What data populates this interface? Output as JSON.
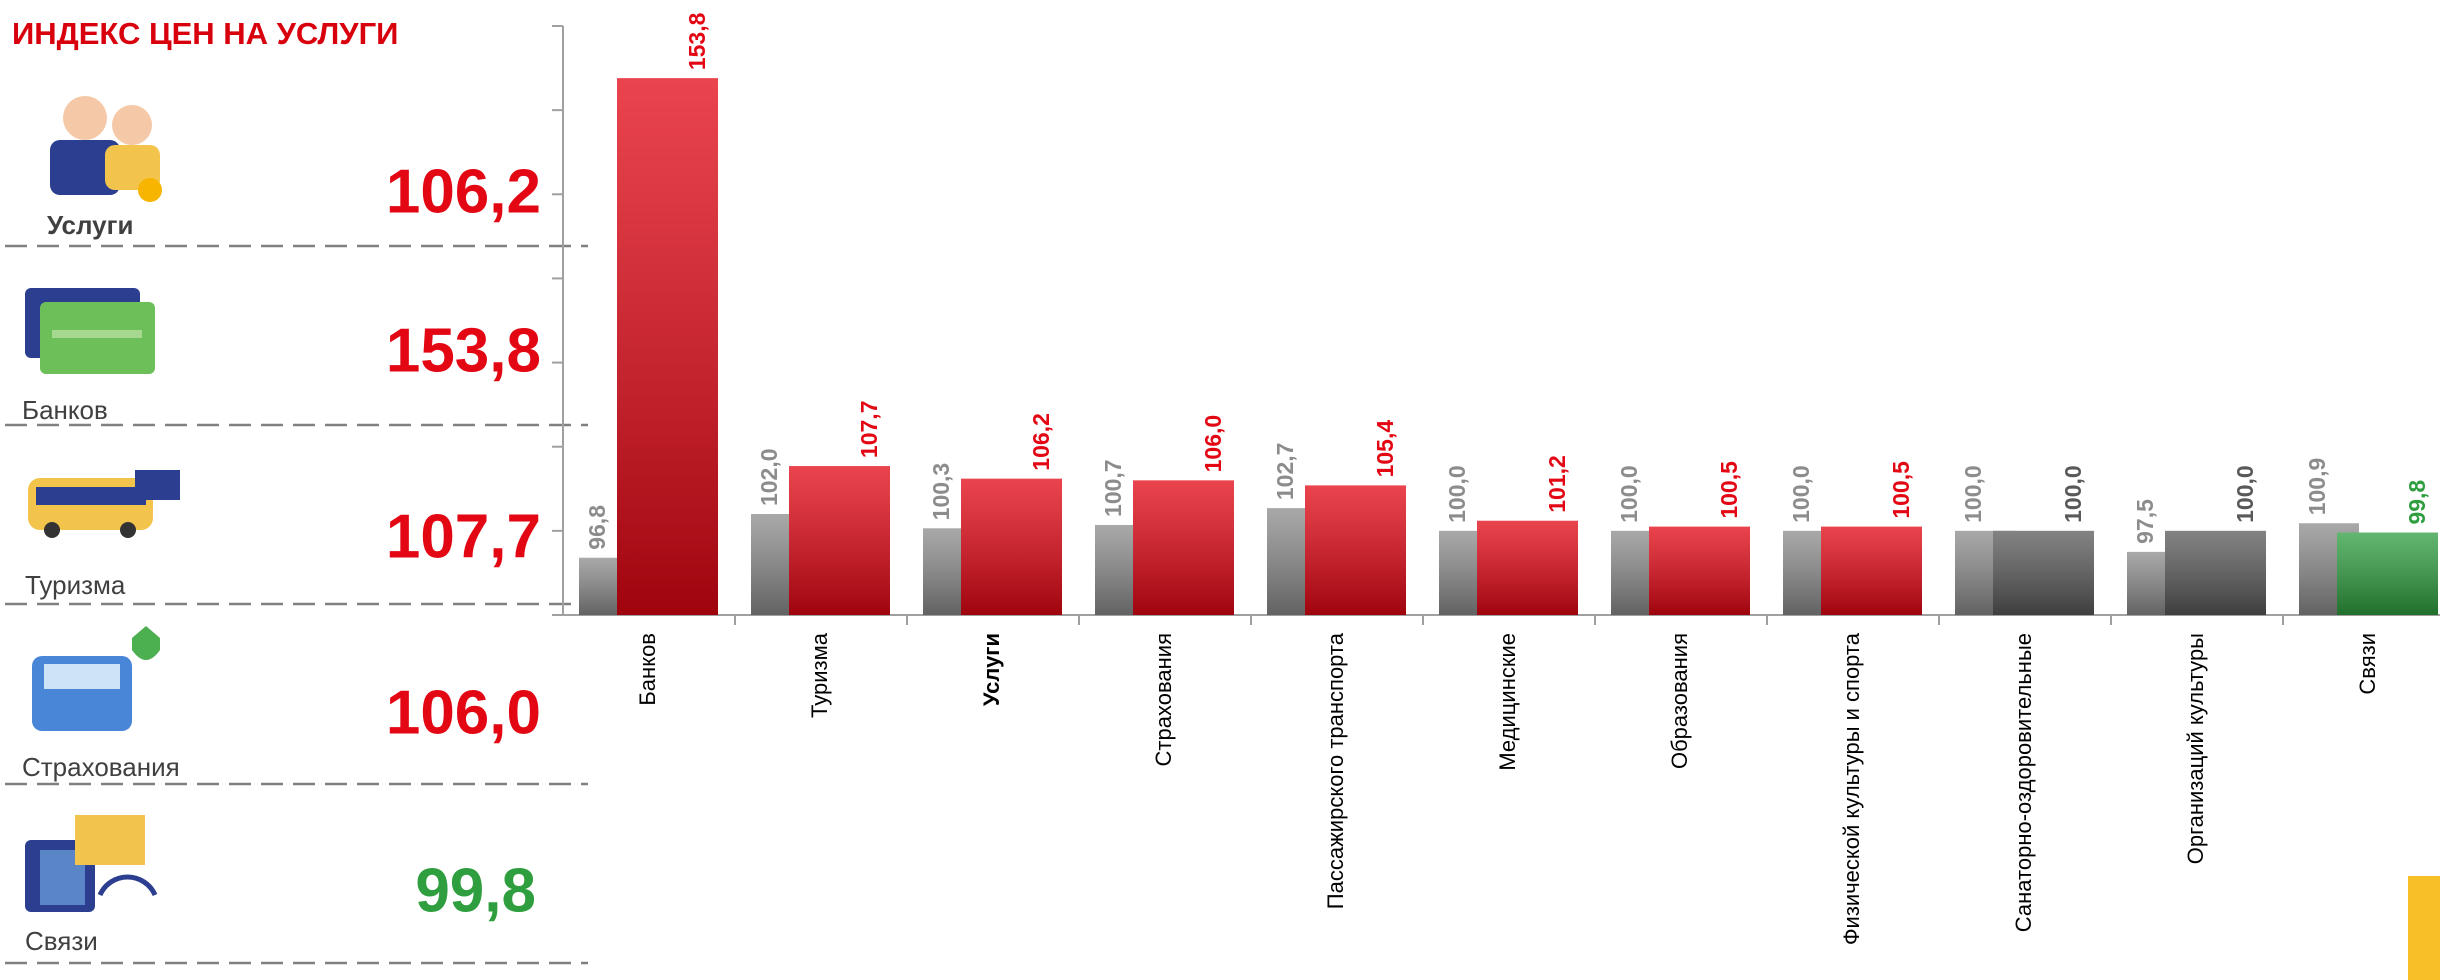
{
  "chart_data": {
    "type": "bar",
    "title": "ИНДЕКС ЦЕН НА УСЛУГИ",
    "categories": [
      "Банков",
      "Туризма",
      "Услуги",
      "Страхования",
      "Пассажирского транспорта",
      "Медицинские",
      "Образования",
      "Физической культуры и спорта",
      "Санаторно-оздоровительные",
      "Организаций культуры",
      "Связи"
    ],
    "series": [
      {
        "color": "#8c8c8c",
        "values": [
          96.8,
          102.0,
          100.3,
          100.7,
          102.7,
          100.0,
          100.0,
          100.0,
          100.0,
          97.5,
          100.9
        ],
        "value_labels": [
          "96,8",
          "102,0",
          "100,3",
          "100,7",
          "102,7",
          "100,0",
          "100,0",
          "100,0",
          "100,0",
          "97,5",
          "100,9"
        ]
      },
      {
        "colors": [
          "#e30613",
          "#e30613",
          "#e30613",
          "#e30613",
          "#e30613",
          "#e30613",
          "#e30613",
          "#e30613",
          "#595959",
          "#595959",
          "#2e9e3e"
        ],
        "values": [
          153.8,
          107.7,
          106.2,
          106.0,
          105.4,
          101.2,
          100.5,
          100.5,
          100.0,
          100.0,
          99.8
        ],
        "value_labels": [
          "153,8",
          "107,7",
          "106,2",
          "106,0",
          "105,4",
          "101,2",
          "100,5",
          "100,5",
          "100,0",
          "100,0",
          "99,8"
        ]
      }
    ],
    "ylim": [
      90,
      160
    ],
    "yticks": [
      90,
      100,
      110,
      120,
      130,
      140,
      150,
      160
    ],
    "grid": false
  }
}
